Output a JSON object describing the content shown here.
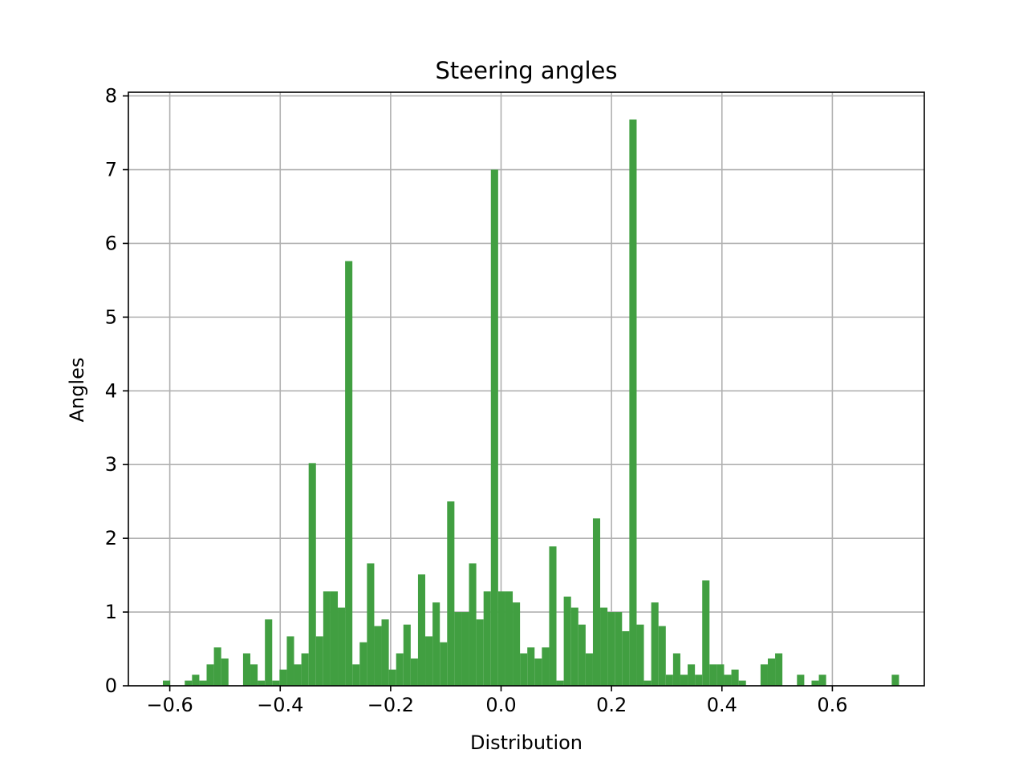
{
  "chart_data": {
    "type": "bar",
    "title": "Steering angles",
    "xlabel": "Distribution",
    "ylabel": "Angles",
    "xlim": [
      -0.675,
      0.7665
    ],
    "ylim": [
      0,
      8.05
    ],
    "xticks": [
      -0.6,
      -0.4,
      -0.2,
      0.0,
      0.2,
      0.4,
      0.6
    ],
    "xtick_labels": [
      "−0.6",
      "−0.4",
      "−0.2",
      "0.0",
      "0.2",
      "0.4",
      "0.6"
    ],
    "yticks": [
      0,
      1,
      2,
      3,
      4,
      5,
      6,
      7,
      8
    ],
    "ytick_labels": [
      "0",
      "1",
      "2",
      "3",
      "4",
      "5",
      "6",
      "7",
      "8"
    ],
    "grid": true,
    "legend": "none",
    "bar_color": "#419f41",
    "bin_start": -0.6125,
    "bin_width": 0.0132,
    "values": [
      0.07,
      0,
      0,
      0.07,
      0.15,
      0.07,
      0.29,
      0.52,
      0.37,
      0,
      0,
      0.44,
      0.29,
      0.07,
      0.9,
      0.07,
      0.22,
      0.67,
      0.29,
      0.44,
      3.02,
      0.67,
      1.28,
      1.28,
      1.06,
      5.76,
      0.29,
      0.59,
      1.66,
      0.81,
      0.9,
      0.22,
      0.44,
      0.83,
      0.37,
      1.51,
      0.67,
      1.13,
      0.59,
      2.5,
      1.0,
      1.0,
      1.66,
      0.9,
      1.28,
      7.0,
      1.28,
      1.28,
      1.13,
      0.44,
      0.52,
      0.37,
      0.52,
      1.89,
      0.07,
      1.21,
      1.06,
      0.83,
      0.44,
      2.27,
      1.06,
      1.0,
      1.0,
      0.74,
      7.68,
      0.83,
      0.07,
      1.13,
      0.81,
      0.15,
      0.44,
      0.15,
      0.29,
      0.15,
      1.43,
      0.29,
      0.29,
      0.15,
      0.22,
      0.07,
      0,
      0,
      0.29,
      0.37,
      0.44,
      0,
      0,
      0.15,
      0,
      0.07,
      0.15,
      0,
      0,
      0,
      0,
      0,
      0,
      0,
      0,
      0,
      0.15
    ]
  }
}
